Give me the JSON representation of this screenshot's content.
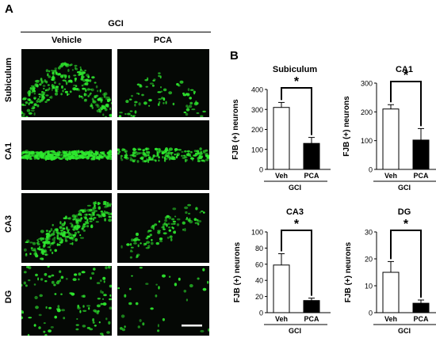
{
  "panel_a": {
    "letter": "A",
    "group_label": "GCI",
    "col_labels": [
      "Vehicle",
      "PCA"
    ],
    "row_labels": [
      "Subiculum",
      "CA1",
      "CA3",
      "DG"
    ],
    "fluorescence_color": "#2ee82e"
  },
  "panel_b": {
    "letter": "B"
  },
  "chart_data": [
    {
      "type": "bar",
      "title": "Subiculum",
      "categories": [
        "Veh",
        "PCA"
      ],
      "values": [
        310,
        130
      ],
      "errors": [
        25,
        30
      ],
      "ylabel": "FJB (+) neurons",
      "xgroup": "GCI",
      "ylim": [
        0,
        400
      ],
      "yticks": [
        0,
        100,
        200,
        300,
        400
      ],
      "significance": "*"
    },
    {
      "type": "bar",
      "title": "CA1",
      "categories": [
        "Veh",
        "PCA"
      ],
      "values": [
        210,
        102
      ],
      "errors": [
        15,
        40
      ],
      "ylabel": "FJB (+) neurons",
      "xgroup": "GCI",
      "ylim": [
        0,
        300
      ],
      "yticks": [
        0,
        100,
        200,
        300
      ],
      "significance": "*"
    },
    {
      "type": "bar",
      "title": "CA3",
      "categories": [
        "Veh",
        "PCA"
      ],
      "values": [
        59,
        15
      ],
      "errors": [
        14,
        3
      ],
      "ylabel": "FJB (+) neurons",
      "xgroup": "GCI",
      "ylim": [
        0,
        100
      ],
      "yticks": [
        0,
        20,
        40,
        60,
        80,
        100
      ],
      "significance": "*"
    },
    {
      "type": "bar",
      "title": "DG",
      "categories": [
        "Veh",
        "PCA"
      ],
      "values": [
        15,
        3.5
      ],
      "errors": [
        4,
        1.2
      ],
      "ylabel": "FJB (+) neurons",
      "xgroup": "GCI",
      "ylim": [
        0,
        30
      ],
      "yticks": [
        0,
        10,
        20,
        30
      ],
      "significance": "*"
    }
  ]
}
